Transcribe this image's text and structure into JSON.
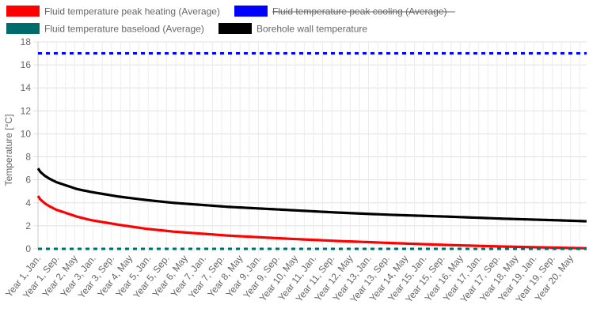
{
  "legend": {
    "items": [
      {
        "label": "Fluid temperature peak heating (Average)",
        "color": "#ff0000",
        "hidden": false
      },
      {
        "label": "Fluid temperature peak cooling (Average)",
        "color": "#0000ff",
        "hidden": true
      },
      {
        "label": "Fluid temperature baseload (Average)",
        "color": "#006b6b",
        "hidden": false
      },
      {
        "label": "Borehole wall temperature",
        "color": "#000000",
        "hidden": false
      }
    ]
  },
  "axis": {
    "ylabel": "Temperature [°C]"
  },
  "chart_data": {
    "type": "line",
    "title": "",
    "xlabel": "",
    "ylabel": "Temperature [°C]",
    "ylim": [
      0,
      18
    ],
    "y_ticks": [
      0,
      2,
      4,
      6,
      8,
      10,
      12,
      14,
      16,
      18
    ],
    "grid": true,
    "legend_position": "top-left",
    "x_tick_labels": [
      "Year 1, Jan.",
      "Year 1, Sep.",
      "Year 2, May",
      "Year 3, Jan.",
      "Year 3, Sep.",
      "Year 4, May",
      "Year 5, Jan.",
      "Year 5, Sep.",
      "Year 6, May",
      "Year 7, Jan.",
      "Year 7, Sep.",
      "Year 8, May",
      "Year 9, Jan.",
      "Year 9, Sep.",
      "Year 10, May",
      "Year 11, Jan.",
      "Year 11, Sep.",
      "Year 12, May",
      "Year 13, Jan.",
      "Year 13, Sep.",
      "Year 14, May",
      "Year 15, Jan.",
      "Year 15, Sep.",
      "Year 16, May",
      "Year 17, Jan.",
      "Year 17, Sep.",
      "Year 18, May",
      "Year 19, Jan.",
      "Year 19, Sep.",
      "Year 20, May"
    ],
    "x_start": "Year 1, Jan.",
    "x_end": "Year 20, Dec.",
    "months": 240,
    "series": [
      {
        "name": "Fluid temperature peak heating (Average)",
        "color": "#ff0000",
        "style": "solid",
        "points": [
          [
            1,
            4.6
          ],
          [
            2,
            4.3
          ],
          [
            4,
            3.95
          ],
          [
            6,
            3.7
          ],
          [
            9,
            3.4
          ],
          [
            12,
            3.2
          ],
          [
            18,
            2.8
          ],
          [
            24,
            2.5
          ],
          [
            36,
            2.1
          ],
          [
            48,
            1.75
          ],
          [
            60,
            1.5
          ],
          [
            84,
            1.15
          ],
          [
            108,
            0.9
          ],
          [
            132,
            0.68
          ],
          [
            156,
            0.5
          ],
          [
            180,
            0.33
          ],
          [
            204,
            0.2
          ],
          [
            228,
            0.1
          ],
          [
            240,
            0.05
          ]
        ]
      },
      {
        "name": "Fluid temperature peak cooling (Average)",
        "color": "#0000ff",
        "style": "dashed",
        "hidden": true,
        "points": [
          [
            1,
            17.0
          ],
          [
            240,
            17.0
          ]
        ]
      },
      {
        "name": "Fluid temperature baseload (Average)",
        "color": "#006b6b",
        "style": "dashed",
        "points": [
          [
            1,
            0.0
          ],
          [
            240,
            0.0
          ]
        ]
      },
      {
        "name": "Borehole wall temperature",
        "color": "#000000",
        "style": "solid",
        "points": [
          [
            1,
            7.0
          ],
          [
            2,
            6.7
          ],
          [
            4,
            6.35
          ],
          [
            6,
            6.1
          ],
          [
            9,
            5.8
          ],
          [
            12,
            5.6
          ],
          [
            18,
            5.2
          ],
          [
            24,
            4.95
          ],
          [
            36,
            4.55
          ],
          [
            48,
            4.25
          ],
          [
            60,
            4.0
          ],
          [
            84,
            3.65
          ],
          [
            108,
            3.4
          ],
          [
            132,
            3.15
          ],
          [
            156,
            2.95
          ],
          [
            180,
            2.8
          ],
          [
            204,
            2.62
          ],
          [
            228,
            2.48
          ],
          [
            240,
            2.4
          ]
        ]
      }
    ]
  }
}
